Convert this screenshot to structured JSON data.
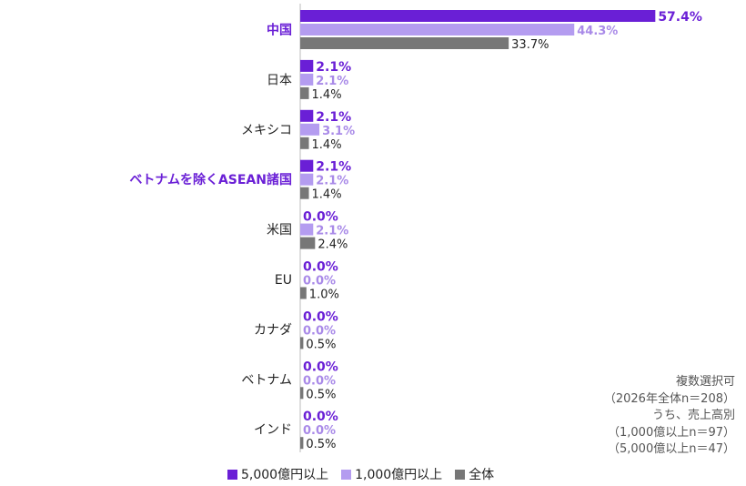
{
  "chart_data": {
    "type": "bar",
    "orientation": "horizontal",
    "categories": [
      "中国",
      "日本",
      "メキシコ",
      "ベトナムを除くASEAN諸国",
      "米国",
      "EU",
      "カナダ",
      "ベトナム",
      "インド"
    ],
    "highlighted_categories": [
      "中国",
      "ベトナムを除くASEAN諸国"
    ],
    "series": [
      {
        "name": "5,000億円以上",
        "color": "#6a1fd6",
        "values": [
          57.4,
          2.1,
          2.1,
          2.1,
          0.0,
          0.0,
          0.0,
          0.0,
          0.0
        ],
        "labels": [
          "57.4%",
          "2.1%",
          "2.1%",
          "2.1%",
          "0.0%",
          "0.0%",
          "0.0%",
          "0.0%",
          "0.0%"
        ]
      },
      {
        "name": "1,000億円以上",
        "color": "#b49cf0",
        "values": [
          44.3,
          2.1,
          3.1,
          2.1,
          2.1,
          0.0,
          0.0,
          0.0,
          0.0
        ],
        "labels": [
          "44.3%",
          "2.1%",
          "3.1%",
          "2.1%",
          "2.1%",
          "0.0%",
          "0.0%",
          "0.0%",
          "0.0%"
        ]
      },
      {
        "name": "全体",
        "color": "#777777",
        "values": [
          33.7,
          1.4,
          1.4,
          1.4,
          2.4,
          1.0,
          0.5,
          0.5,
          0.5
        ],
        "labels": [
          "33.7%",
          "1.4%",
          "1.4%",
          "1.4%",
          "2.4%",
          "1.0%",
          "0.5%",
          "0.5%",
          "0.5%"
        ]
      }
    ],
    "legend_position": "bottom",
    "grid": false,
    "xlim": [
      0,
      60
    ]
  },
  "colors": {
    "highlight_text": "#6a1fd6",
    "light_series_text": "#a98ae8",
    "normal_text": "#222222"
  },
  "note": [
    "複数選択可",
    "（2026年全体n＝208）",
    "うち、売上高別",
    "（1,000億以上n＝97）",
    "（5,000億以上n＝47）"
  ],
  "legend": {
    "items": [
      {
        "label": "5,000億円以上"
      },
      {
        "label": "1,000億円以上"
      },
      {
        "label": "全体"
      }
    ]
  }
}
